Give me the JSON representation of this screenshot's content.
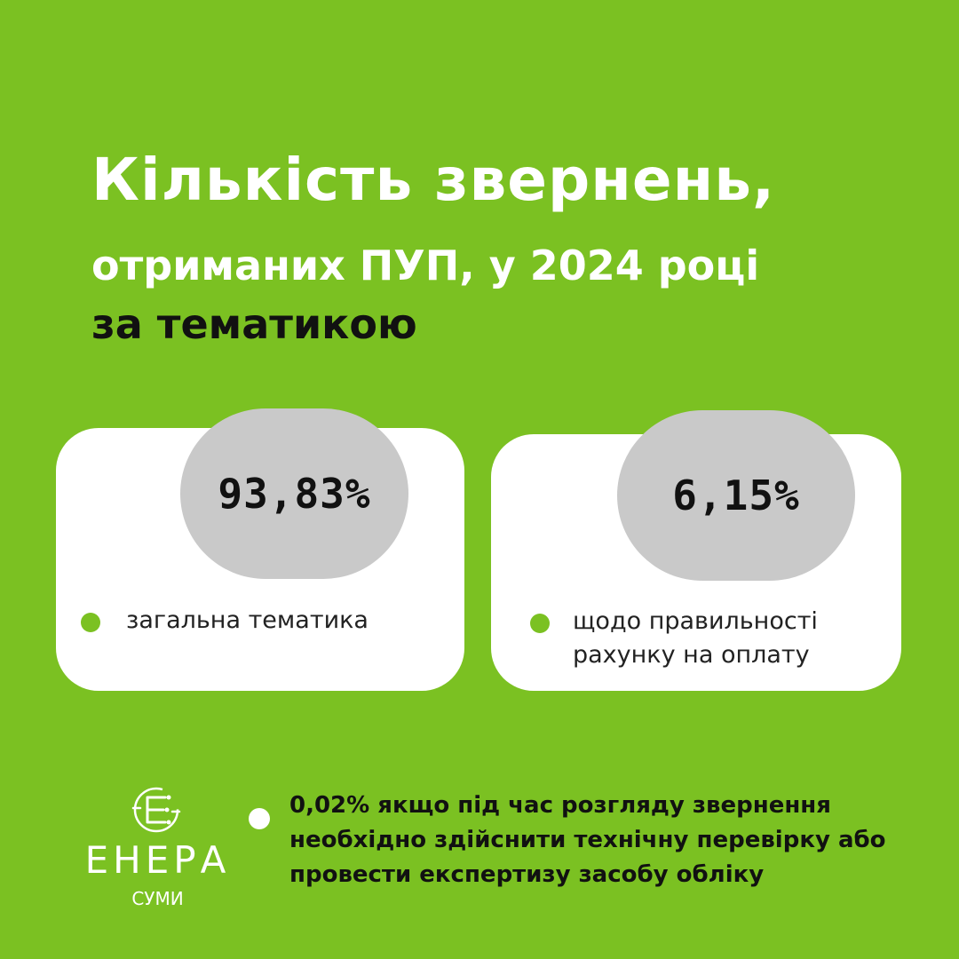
{
  "title": {
    "line1": "Кількість звернень,",
    "line2": "отриманих ПУП, у 2024 році",
    "line3": "за тематикою"
  },
  "cards": [
    {
      "value": "93,83%",
      "label": "загальна тематика"
    },
    {
      "value": "6,15%",
      "label": "щодо правильності рахунку на оплату"
    }
  ],
  "logo": {
    "name": "ЕНЕРА",
    "city": "СУМИ",
    "icon": "enera-logo-icon"
  },
  "note": {
    "text": "0,02% якщо під час розгляду звернення необхідно здійснити технічну перевірку або провести експертизу засобу обліку"
  },
  "colors": {
    "background": "#7BC122",
    "card": "#FFFFFF",
    "pill": "#C9C9C9",
    "accent": "#7BC122",
    "dark_text": "#111111"
  }
}
